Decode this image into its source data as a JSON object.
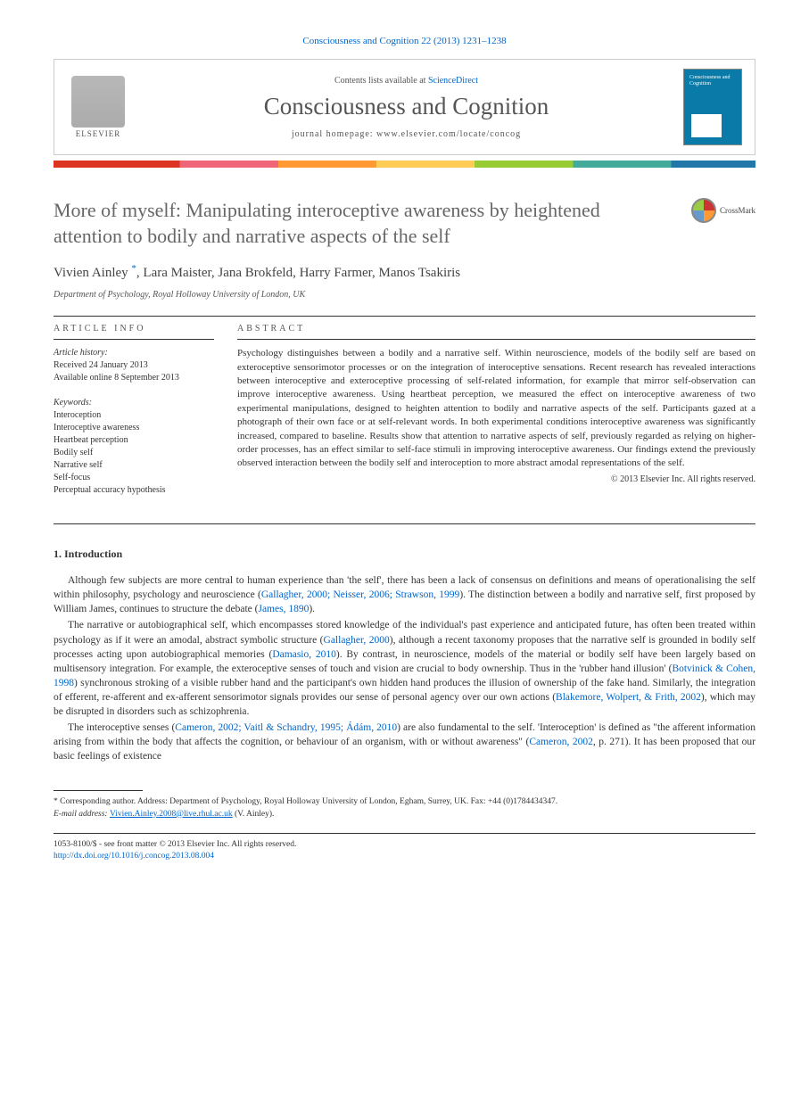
{
  "topRef": "Consciousness and Cognition 22 (2013) 1231–1238",
  "header": {
    "contentsPrefix": "Contents lists available at ",
    "contentsLink": "ScienceDirect",
    "journalName": "Consciousness and Cognition",
    "homepagePrefix": "journal homepage: ",
    "homepageUrl": "www.elsevier.com/locate/concog",
    "elsevierLabel": "ELSEVIER",
    "coverTitle": "Consciousness and Cognition"
  },
  "crossmark": "CrossMark",
  "title": "More of myself: Manipulating interoceptive awareness by heightened attention to bodily and narrative aspects of the self",
  "authors": "Vivien Ainley *, Lara Maister, Jana Brokfeld, Harry Farmer, Manos Tsakiris",
  "affiliation": "Department of Psychology, Royal Holloway University of London, UK",
  "info": {
    "label": "ARTICLE INFO",
    "historyLabel": "Article history:",
    "received": "Received 24 January 2013",
    "online": "Available online 8 September 2013",
    "keywordsLabel": "Keywords:",
    "keywords": [
      "Interoception",
      "Interoceptive awareness",
      "Heartbeat perception",
      "Bodily self",
      "Narrative self",
      "Self-focus",
      "Perceptual accuracy hypothesis"
    ]
  },
  "abstract": {
    "label": "ABSTRACT",
    "text": "Psychology distinguishes between a bodily and a narrative self. Within neuroscience, models of the bodily self are based on exteroceptive sensorimotor processes or on the integration of interoceptive sensations. Recent research has revealed interactions between interoceptive and exteroceptive processing of self-related information, for example that mirror self-observation can improve interoceptive awareness. Using heartbeat perception, we measured the effect on interoceptive awareness of two experimental manipulations, designed to heighten attention to bodily and narrative aspects of the self. Participants gazed at a photograph of their own face or at self-relevant words. In both experimental conditions interoceptive awareness was significantly increased, compared to baseline. Results show that attention to narrative aspects of self, previously regarded as relying on higher-order processes, has an effect similar to self-face stimuli in improving interoceptive awareness. Our findings extend the previously observed interaction between the bodily self and interoception to more abstract amodal representations of the self.",
    "copyright": "© 2013 Elsevier Inc. All rights reserved."
  },
  "intro": {
    "heading": "1. Introduction",
    "p1a": "Although few subjects are more central to human experience than 'the self', there has been a lack of consensus on definitions and means of operationalising the self within philosophy, psychology and neuroscience (",
    "p1link1": "Gallagher, 2000; Neisser, 2006; Strawson, 1999",
    "p1b": "). The distinction between a bodily and narrative self, first proposed by William James, continues to structure the debate (",
    "p1link2": "James, 1890",
    "p1c": ").",
    "p2a": "The narrative or autobiographical self, which encompasses stored knowledge of the individual's past experience and anticipated future, has often been treated within psychology as if it were an amodal, abstract symbolic structure (",
    "p2link1": "Gallagher, 2000",
    "p2b": "), although a recent taxonomy proposes that the narrative self is grounded in bodily self processes acting upon autobiographical memories (",
    "p2link2": "Damasio, 2010",
    "p2c": "). By contrast, in neuroscience, models of the material or bodily self have been largely based on multisensory integration. For example, the exteroceptive senses of touch and vision are crucial to body ownership. Thus in the 'rubber hand illusion' (",
    "p2link3": "Botvinick & Cohen, 1998",
    "p2d": ") synchronous stroking of a visible rubber hand and the participant's own hidden hand produces the illusion of ownership of the fake hand. Similarly, the integration of efferent, re-afferent and ex-afferent sensorimotor signals provides our sense of personal agency over our own actions (",
    "p2link4": "Blakemore, Wolpert, & Frith, 2002",
    "p2e": "), which may be disrupted in disorders such as schizophrenia.",
    "p3a": "The interoceptive senses (",
    "p3link1": "Cameron, 2002; Vaitl & Schandry, 1995; Ádám, 2010",
    "p3b": ") are also fundamental to the self. 'Interoception' is defined as \"the afferent information arising from within the body that affects the cognition, or behaviour of an organism, with or without awareness\" (",
    "p3link2": "Cameron, 2002",
    "p3c": ", p. 271). It has been proposed that our basic feelings of existence"
  },
  "footnote": {
    "corrLabel": "* Corresponding author. Address: Department of Psychology, Royal Holloway University of London, Egham, Surrey, UK. Fax: +44 (0)1784434347.",
    "emailLabel": "E-mail address: ",
    "email": "Vivien.Ainley.2008@live.rhul.ac.uk",
    "emailSuffix": " (V. Ainley)."
  },
  "footer": {
    "issn": "1053-8100/$ - see front matter © 2013 Elsevier Inc. All rights reserved.",
    "doi": "http://dx.doi.org/10.1016/j.concog.2013.08.004"
  }
}
